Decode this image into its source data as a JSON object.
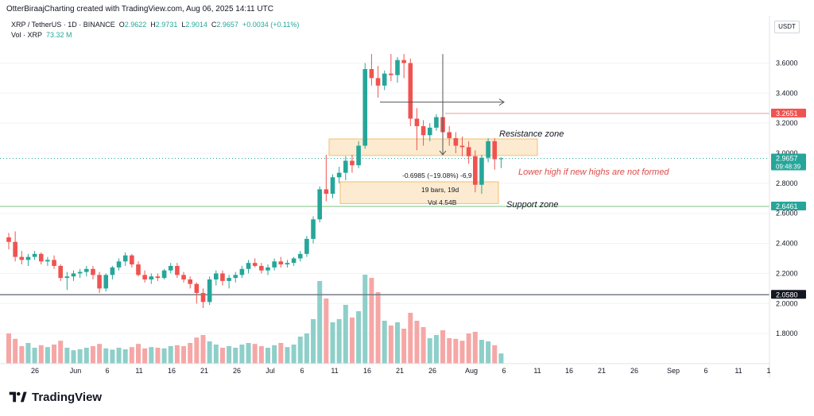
{
  "header": {
    "title": "OtterBiraajCharting created with TradingView.com, Aug 06, 2025 14:11 UTC"
  },
  "symbol": {
    "name": "XRP / TetherUS · 1D · BINANCE",
    "o_label": "O",
    "o": "2.9622",
    "h_label": "H",
    "h": "2.9731",
    "l_label": "L",
    "l": "2.9014",
    "c_label": "C",
    "c": "2.9657",
    "change": "+0.0034 (+0.11%)"
  },
  "volume": {
    "label": "Vol · XRP",
    "value": "73.32 M"
  },
  "currency": "USDT",
  "footer": {
    "brand": "TradingView"
  },
  "colors": {
    "up": "#26a69a",
    "down": "#ef5350",
    "zone_fill": "#fce8c8",
    "zone_stroke": "#f2b45a",
    "resistance_line": "#ef9a9a",
    "support_line": "#7cc07f",
    "gray_line": "#787b86"
  },
  "chart_data": {
    "type": "candlestick",
    "ylim": [
      1.6,
      3.84
    ],
    "price_ticks": [
      "3.6000",
      "3.4000",
      "3.2000",
      "3.0000",
      "2.8000",
      "2.6000",
      "2.4000",
      "2.2000",
      "2.0000",
      "1.8000"
    ],
    "time_labels": [
      "26",
      "Jun",
      "6",
      "11",
      "16",
      "21",
      "26",
      "Jul",
      "6",
      "11",
      "16",
      "21",
      "26",
      "Aug",
      "6",
      "11",
      "16",
      "21",
      "26",
      "Sep",
      "6",
      "11",
      "1"
    ],
    "candles": [
      {
        "o": 2.44,
        "h": 2.47,
        "l": 2.36,
        "c": 2.41
      },
      {
        "o": 2.41,
        "h": 2.48,
        "l": 2.28,
        "c": 2.31
      },
      {
        "o": 2.31,
        "h": 2.35,
        "l": 2.26,
        "c": 2.29
      },
      {
        "o": 2.29,
        "h": 2.33,
        "l": 2.25,
        "c": 2.31
      },
      {
        "o": 2.31,
        "h": 2.35,
        "l": 2.29,
        "c": 2.33
      },
      {
        "o": 2.33,
        "h": 2.34,
        "l": 2.26,
        "c": 2.28
      },
      {
        "o": 2.28,
        "h": 2.31,
        "l": 2.25,
        "c": 2.29
      },
      {
        "o": 2.29,
        "h": 2.32,
        "l": 2.23,
        "c": 2.25
      },
      {
        "o": 2.25,
        "h": 2.26,
        "l": 2.15,
        "c": 2.17
      },
      {
        "o": 2.17,
        "h": 2.21,
        "l": 2.09,
        "c": 2.18
      },
      {
        "o": 2.18,
        "h": 2.22,
        "l": 2.15,
        "c": 2.2
      },
      {
        "o": 2.2,
        "h": 2.23,
        "l": 2.17,
        "c": 2.21
      },
      {
        "o": 2.21,
        "h": 2.25,
        "l": 2.18,
        "c": 2.23
      },
      {
        "o": 2.23,
        "h": 2.25,
        "l": 2.16,
        "c": 2.19
      },
      {
        "o": 2.19,
        "h": 2.21,
        "l": 2.07,
        "c": 2.1
      },
      {
        "o": 2.1,
        "h": 2.2,
        "l": 2.08,
        "c": 2.19
      },
      {
        "o": 2.19,
        "h": 2.25,
        "l": 2.16,
        "c": 2.24
      },
      {
        "o": 2.24,
        "h": 2.3,
        "l": 2.22,
        "c": 2.28
      },
      {
        "o": 2.28,
        "h": 2.34,
        "l": 2.25,
        "c": 2.32
      },
      {
        "o": 2.32,
        "h": 2.33,
        "l": 2.24,
        "c": 2.26
      },
      {
        "o": 2.26,
        "h": 2.28,
        "l": 2.18,
        "c": 2.19
      },
      {
        "o": 2.19,
        "h": 2.22,
        "l": 2.14,
        "c": 2.16
      },
      {
        "o": 2.16,
        "h": 2.2,
        "l": 2.13,
        "c": 2.18
      },
      {
        "o": 2.18,
        "h": 2.2,
        "l": 2.15,
        "c": 2.17
      },
      {
        "o": 2.17,
        "h": 2.23,
        "l": 2.16,
        "c": 2.22
      },
      {
        "o": 2.22,
        "h": 2.27,
        "l": 2.2,
        "c": 2.25
      },
      {
        "o": 2.25,
        "h": 2.27,
        "l": 2.17,
        "c": 2.19
      },
      {
        "o": 2.19,
        "h": 2.21,
        "l": 2.14,
        "c": 2.16
      },
      {
        "o": 2.16,
        "h": 2.18,
        "l": 2.1,
        "c": 2.13
      },
      {
        "o": 2.13,
        "h": 2.14,
        "l": 2.0,
        "c": 2.07
      },
      {
        "o": 2.07,
        "h": 2.1,
        "l": 1.97,
        "c": 2.01
      },
      {
        "o": 2.01,
        "h": 2.18,
        "l": 1.99,
        "c": 2.16
      },
      {
        "o": 2.16,
        "h": 2.22,
        "l": 2.12,
        "c": 2.2
      },
      {
        "o": 2.2,
        "h": 2.22,
        "l": 2.12,
        "c": 2.15
      },
      {
        "o": 2.15,
        "h": 2.19,
        "l": 2.1,
        "c": 2.17
      },
      {
        "o": 2.17,
        "h": 2.21,
        "l": 2.14,
        "c": 2.19
      },
      {
        "o": 2.19,
        "h": 2.25,
        "l": 2.17,
        "c": 2.23
      },
      {
        "o": 2.23,
        "h": 2.29,
        "l": 2.2,
        "c": 2.27
      },
      {
        "o": 2.27,
        "h": 2.3,
        "l": 2.24,
        "c": 2.25
      },
      {
        "o": 2.25,
        "h": 2.27,
        "l": 2.2,
        "c": 2.22
      },
      {
        "o": 2.22,
        "h": 2.26,
        "l": 2.19,
        "c": 2.24
      },
      {
        "o": 2.24,
        "h": 2.3,
        "l": 2.22,
        "c": 2.28
      },
      {
        "o": 2.28,
        "h": 2.31,
        "l": 2.24,
        "c": 2.26
      },
      {
        "o": 2.26,
        "h": 2.29,
        "l": 2.24,
        "c": 2.27
      },
      {
        "o": 2.27,
        "h": 2.31,
        "l": 2.25,
        "c": 2.3
      },
      {
        "o": 2.3,
        "h": 2.35,
        "l": 2.28,
        "c": 2.33
      },
      {
        "o": 2.33,
        "h": 2.45,
        "l": 2.31,
        "c": 2.43
      },
      {
        "o": 2.43,
        "h": 2.58,
        "l": 2.4,
        "c": 2.56
      },
      {
        "o": 2.56,
        "h": 2.78,
        "l": 2.54,
        "c": 2.76
      },
      {
        "o": 2.76,
        "h": 2.99,
        "l": 2.68,
        "c": 2.73
      },
      {
        "o": 2.73,
        "h": 2.86,
        "l": 2.7,
        "c": 2.84
      },
      {
        "o": 2.84,
        "h": 2.91,
        "l": 2.8,
        "c": 2.87
      },
      {
        "o": 2.87,
        "h": 2.98,
        "l": 2.82,
        "c": 2.95
      },
      {
        "o": 2.95,
        "h": 2.99,
        "l": 2.87,
        "c": 2.92
      },
      {
        "o": 2.92,
        "h": 3.08,
        "l": 2.9,
        "c": 3.05
      },
      {
        "o": 3.05,
        "h": 3.6,
        "l": 3.03,
        "c": 3.56
      },
      {
        "o": 3.56,
        "h": 3.66,
        "l": 3.45,
        "c": 3.5
      },
      {
        "o": 3.5,
        "h": 3.58,
        "l": 3.37,
        "c": 3.45
      },
      {
        "o": 3.45,
        "h": 3.55,
        "l": 3.42,
        "c": 3.53
      },
      {
        "o": 3.53,
        "h": 3.66,
        "l": 3.48,
        "c": 3.52
      },
      {
        "o": 3.52,
        "h": 3.64,
        "l": 3.47,
        "c": 3.62
      },
      {
        "o": 3.62,
        "h": 3.66,
        "l": 3.5,
        "c": 3.6
      },
      {
        "o": 3.6,
        "h": 3.63,
        "l": 3.18,
        "c": 3.23
      },
      {
        "o": 3.23,
        "h": 3.3,
        "l": 3.02,
        "c": 3.18
      },
      {
        "o": 3.18,
        "h": 3.22,
        "l": 3.05,
        "c": 3.12
      },
      {
        "o": 3.12,
        "h": 3.2,
        "l": 3.08,
        "c": 3.17
      },
      {
        "o": 3.17,
        "h": 3.26,
        "l": 3.15,
        "c": 3.24
      },
      {
        "o": 3.24,
        "h": 3.34,
        "l": 3.05,
        "c": 3.14
      },
      {
        "o": 3.14,
        "h": 3.18,
        "l": 3.05,
        "c": 3.1
      },
      {
        "o": 3.1,
        "h": 3.14,
        "l": 3.0,
        "c": 3.05
      },
      {
        "o": 3.05,
        "h": 3.11,
        "l": 2.98,
        "c": 3.04
      },
      {
        "o": 3.04,
        "h": 3.08,
        "l": 2.93,
        "c": 2.98
      },
      {
        "o": 2.98,
        "h": 3.02,
        "l": 2.74,
        "c": 2.79
      },
      {
        "o": 2.79,
        "h": 2.99,
        "l": 2.73,
        "c": 2.97
      },
      {
        "o": 2.97,
        "h": 3.1,
        "l": 2.94,
        "c": 3.08
      },
      {
        "o": 3.08,
        "h": 3.1,
        "l": 2.89,
        "c": 2.96
      },
      {
        "o": 2.9622,
        "h": 2.9731,
        "l": 2.9014,
        "c": 2.9657
      }
    ],
    "volumes": [
      0.95,
      0.78,
      0.55,
      0.65,
      0.5,
      0.58,
      0.52,
      0.6,
      0.72,
      0.5,
      0.42,
      0.45,
      0.5,
      0.55,
      0.62,
      0.48,
      0.44,
      0.5,
      0.45,
      0.52,
      0.62,
      0.48,
      0.52,
      0.5,
      0.48,
      0.55,
      0.58,
      0.55,
      0.65,
      0.82,
      0.9,
      0.7,
      0.6,
      0.5,
      0.55,
      0.5,
      0.6,
      0.65,
      0.62,
      0.55,
      0.5,
      0.58,
      0.65,
      0.52,
      0.6,
      0.85,
      0.95,
      1.4,
      2.6,
      2.05,
      1.3,
      1.4,
      1.85,
      1.45,
      1.65,
      2.8,
      2.7,
      2.25,
      1.35,
      1.2,
      1.3,
      1.1,
      1.6,
      1.35,
      1.15,
      0.8,
      0.9,
      1.05,
      0.8,
      0.78,
      0.72,
      0.95,
      1.0,
      0.75,
      0.7,
      0.58,
      0.32
    ],
    "price_labels": [
      {
        "price": 3.2651,
        "text": "3.2651",
        "color": "#ef5350"
      },
      {
        "price": 2.9657,
        "text": "2.9657",
        "sub": "09:48:39",
        "color": "#26a69a"
      },
      {
        "price": 2.6461,
        "text": "2.6461",
        "color": "#26a69a"
      },
      {
        "price": 2.058,
        "text": "2.0580",
        "color": "#131722"
      }
    ],
    "annotations": {
      "resistance_zone": "Resistance zone",
      "support_zone": "Support zone",
      "lower_high": "Lower high if new highs are not formed",
      "measure_line1": "-0.6985 (−19.08%) -6,9",
      "measure_line2": "19 bars, 19d",
      "measure_line3": "Vol 4.54B"
    }
  }
}
